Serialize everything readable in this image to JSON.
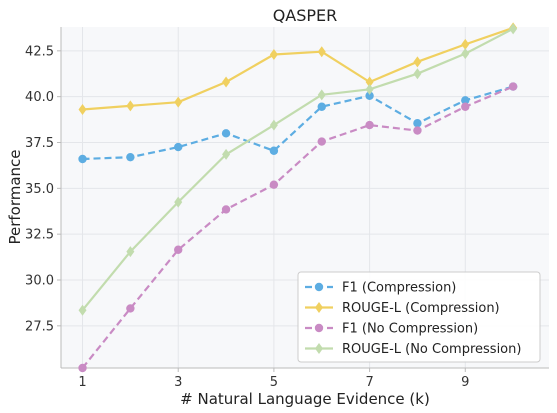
{
  "chart_data": {
    "type": "line",
    "title": "QASPER",
    "xlabel": "# Natural Language Evidence (k)",
    "ylabel": "Performance",
    "x": [
      1,
      2,
      3,
      4,
      5,
      6,
      7,
      8,
      9,
      10
    ],
    "xlim": [
      0.55,
      10.75
    ],
    "ylim": [
      25.2,
      43.8
    ],
    "x_ticks": [
      "1",
      "3",
      "5",
      "7",
      "9"
    ],
    "y_ticks": [
      "27.5",
      "30.0",
      "32.5",
      "35.0",
      "37.5",
      "40.0",
      "42.5"
    ],
    "grid": true,
    "legend_position": "bottom-right",
    "series": [
      {
        "name": "F1 (Compression)",
        "color": "#5dade2",
        "dash": "dashed",
        "marker": "circle",
        "values": [
          36.6,
          36.7,
          37.25,
          38.0,
          37.05,
          39.45,
          40.05,
          38.55,
          39.8,
          40.55
        ]
      },
      {
        "name": "ROUGE-L (Compression)",
        "color": "#f0d060",
        "dash": "solid",
        "marker": "diamond",
        "values": [
          39.3,
          39.5,
          39.7,
          40.8,
          42.3,
          42.45,
          40.8,
          41.9,
          42.85,
          43.75
        ]
      },
      {
        "name": "F1 (No Compression)",
        "color": "#c98bc4",
        "dash": "dashed",
        "marker": "circle",
        "values": [
          25.2,
          28.45,
          31.65,
          33.85,
          35.2,
          37.55,
          38.45,
          38.15,
          39.45,
          40.55
        ]
      },
      {
        "name": "ROUGE-L (No Compression)",
        "color": "#c2dcae",
        "dash": "solid",
        "marker": "diamond",
        "values": [
          28.35,
          31.55,
          34.25,
          36.85,
          38.45,
          40.1,
          40.4,
          41.25,
          42.35,
          43.7
        ]
      }
    ]
  }
}
